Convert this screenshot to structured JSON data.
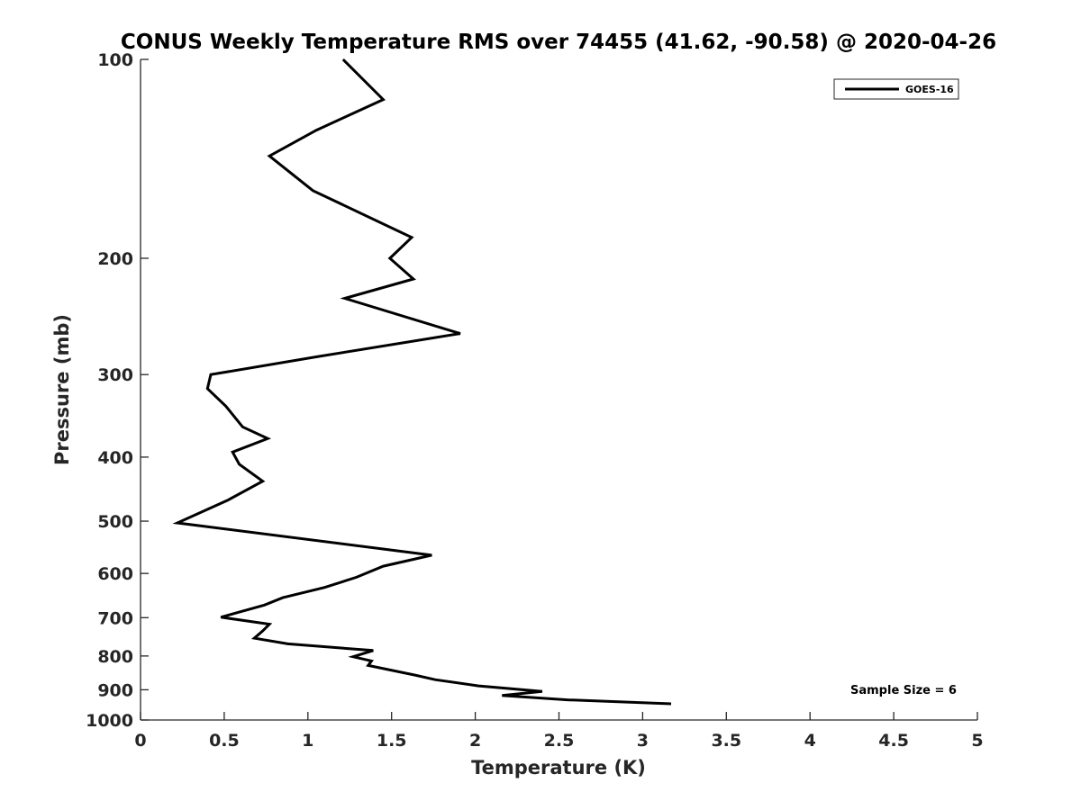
{
  "chart_data": {
    "type": "line",
    "title": "CONUS Weekly Temperature RMS over 74455 (41.62, -90.58) @ 2020-04-26",
    "xlabel": "Temperature (K)",
    "ylabel": "Pressure (mb)",
    "xlim": [
      0,
      5
    ],
    "ylim": [
      100,
      1000
    ],
    "y_scale": "log",
    "y_reversed": true,
    "x_ticks": [
      0,
      0.5,
      1,
      1.5,
      2,
      2.5,
      3,
      3.5,
      4,
      4.5,
      5
    ],
    "x_tick_labels": [
      "0",
      "0.5",
      "1",
      "1.5",
      "2",
      "2.5",
      "3",
      "3.5",
      "4",
      "4.5",
      "5"
    ],
    "y_ticks": [
      100,
      200,
      300,
      400,
      500,
      600,
      700,
      800,
      900,
      1000
    ],
    "y_tick_labels": [
      "100",
      "200",
      "300",
      "400",
      "500",
      "600",
      "700",
      "800",
      "900",
      "1000"
    ],
    "grid": false,
    "legend_position": "top-right",
    "annotation": "Sample Size = 6",
    "series": [
      {
        "name": "GOES-16",
        "color": "#000000",
        "x": [
          1.21,
          1.45,
          1.05,
          0.77,
          1.03,
          1.62,
          1.49,
          1.63,
          1.22,
          1.91,
          1.05,
          0.42,
          0.4,
          0.51,
          0.61,
          0.76,
          0.55,
          0.59,
          0.73,
          0.52,
          0.22,
          1.74,
          1.45,
          1.29,
          1.1,
          0.85,
          0.74,
          0.48,
          0.77,
          0.73,
          0.68,
          0.88,
          1.39,
          1.27,
          1.38,
          1.36,
          1.64,
          1.76,
          2.02,
          2.4,
          2.16,
          2.55,
          3.17
        ],
        "y": [
          100,
          115,
          128,
          140,
          158,
          186,
          200,
          215,
          230,
          260,
          282,
          300,
          315,
          335,
          360,
          375,
          393,
          410,
          435,
          465,
          503,
          563,
          585,
          608,
          630,
          653,
          670,
          699,
          716,
          733,
          752,
          767,
          785,
          802,
          814,
          827,
          855,
          869,
          888,
          905,
          918,
          932,
          945
        ]
      }
    ]
  }
}
